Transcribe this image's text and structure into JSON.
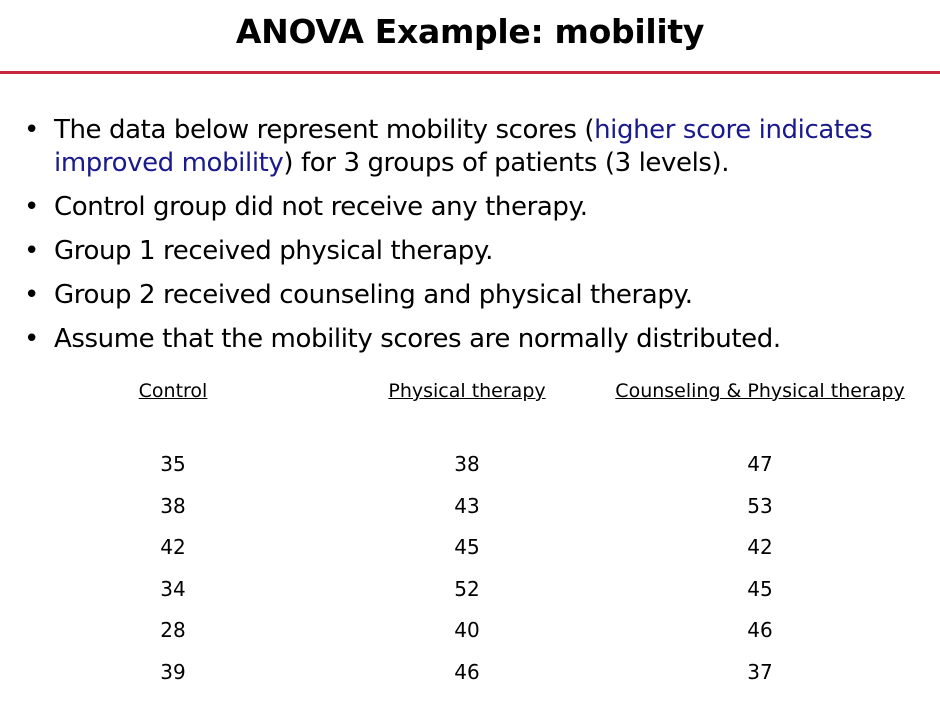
{
  "title": "ANOVA Example: mobility",
  "colors": {
    "title_rule": "#c8283c",
    "highlight_text": "#1a1a8c"
  },
  "bullets": [
    {
      "pre": "The data below represent mobility scores (",
      "highlight": "higher score indicates improved mobility",
      "post": ") for 3 groups of patients (3 levels)."
    },
    {
      "text": "Control group did not receive any therapy."
    },
    {
      "text": "Group 1 received physical therapy."
    },
    {
      "text": "Group 2 received counseling and physical therapy."
    },
    {
      "text": "Assume that the mobility scores are normally distributed."
    }
  ],
  "table": {
    "columns": [
      {
        "header": "Control",
        "values": [
          "35",
          "38",
          "42",
          "34",
          "28",
          "39"
        ]
      },
      {
        "header": "Physical therapy",
        "values": [
          "38",
          "43",
          "45",
          "52",
          "40",
          "46"
        ]
      },
      {
        "header": "Counseling & Physical therapy",
        "values": [
          "47",
          "53",
          "42",
          "45",
          "46",
          "37"
        ]
      }
    ]
  }
}
